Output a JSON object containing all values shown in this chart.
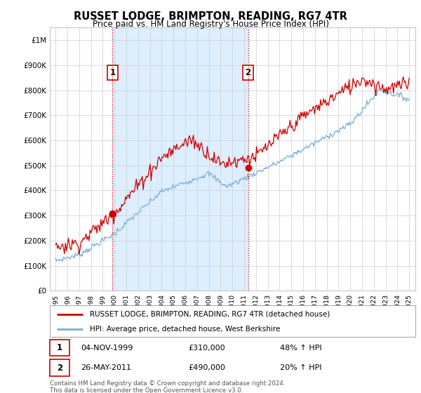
{
  "title": "RUSSET LODGE, BRIMPTON, READING, RG7 4TR",
  "subtitle": "Price paid vs. HM Land Registry's House Price Index (HPI)",
  "hpi_label": "HPI: Average price, detached house, West Berkshire",
  "property_label": "RUSSET LODGE, BRIMPTON, READING, RG7 4TR (detached house)",
  "sale1_date": "04-NOV-1999",
  "sale1_price": 310000,
  "sale1_hpi": "48% ↑ HPI",
  "sale2_date": "26-MAY-2011",
  "sale2_price": 490000,
  "sale2_hpi": "20% ↑ HPI",
  "footer": "Contains HM Land Registry data © Crown copyright and database right 2024.\nThis data is licensed under the Open Government Licence v3.0.",
  "sale1_yr": 1999.833,
  "sale2_yr": 2011.333,
  "ylim_max": 1050000,
  "xlim_min": 1994.5,
  "xlim_max": 2025.5,
  "red_color": "#cc0000",
  "blue_color": "#7aadd4",
  "fill_color": "#ddeeff",
  "vline_color": "#cc0000",
  "background_color": "#ffffff",
  "grid_color": "#cccccc",
  "label_box_color": "#cc0000"
}
